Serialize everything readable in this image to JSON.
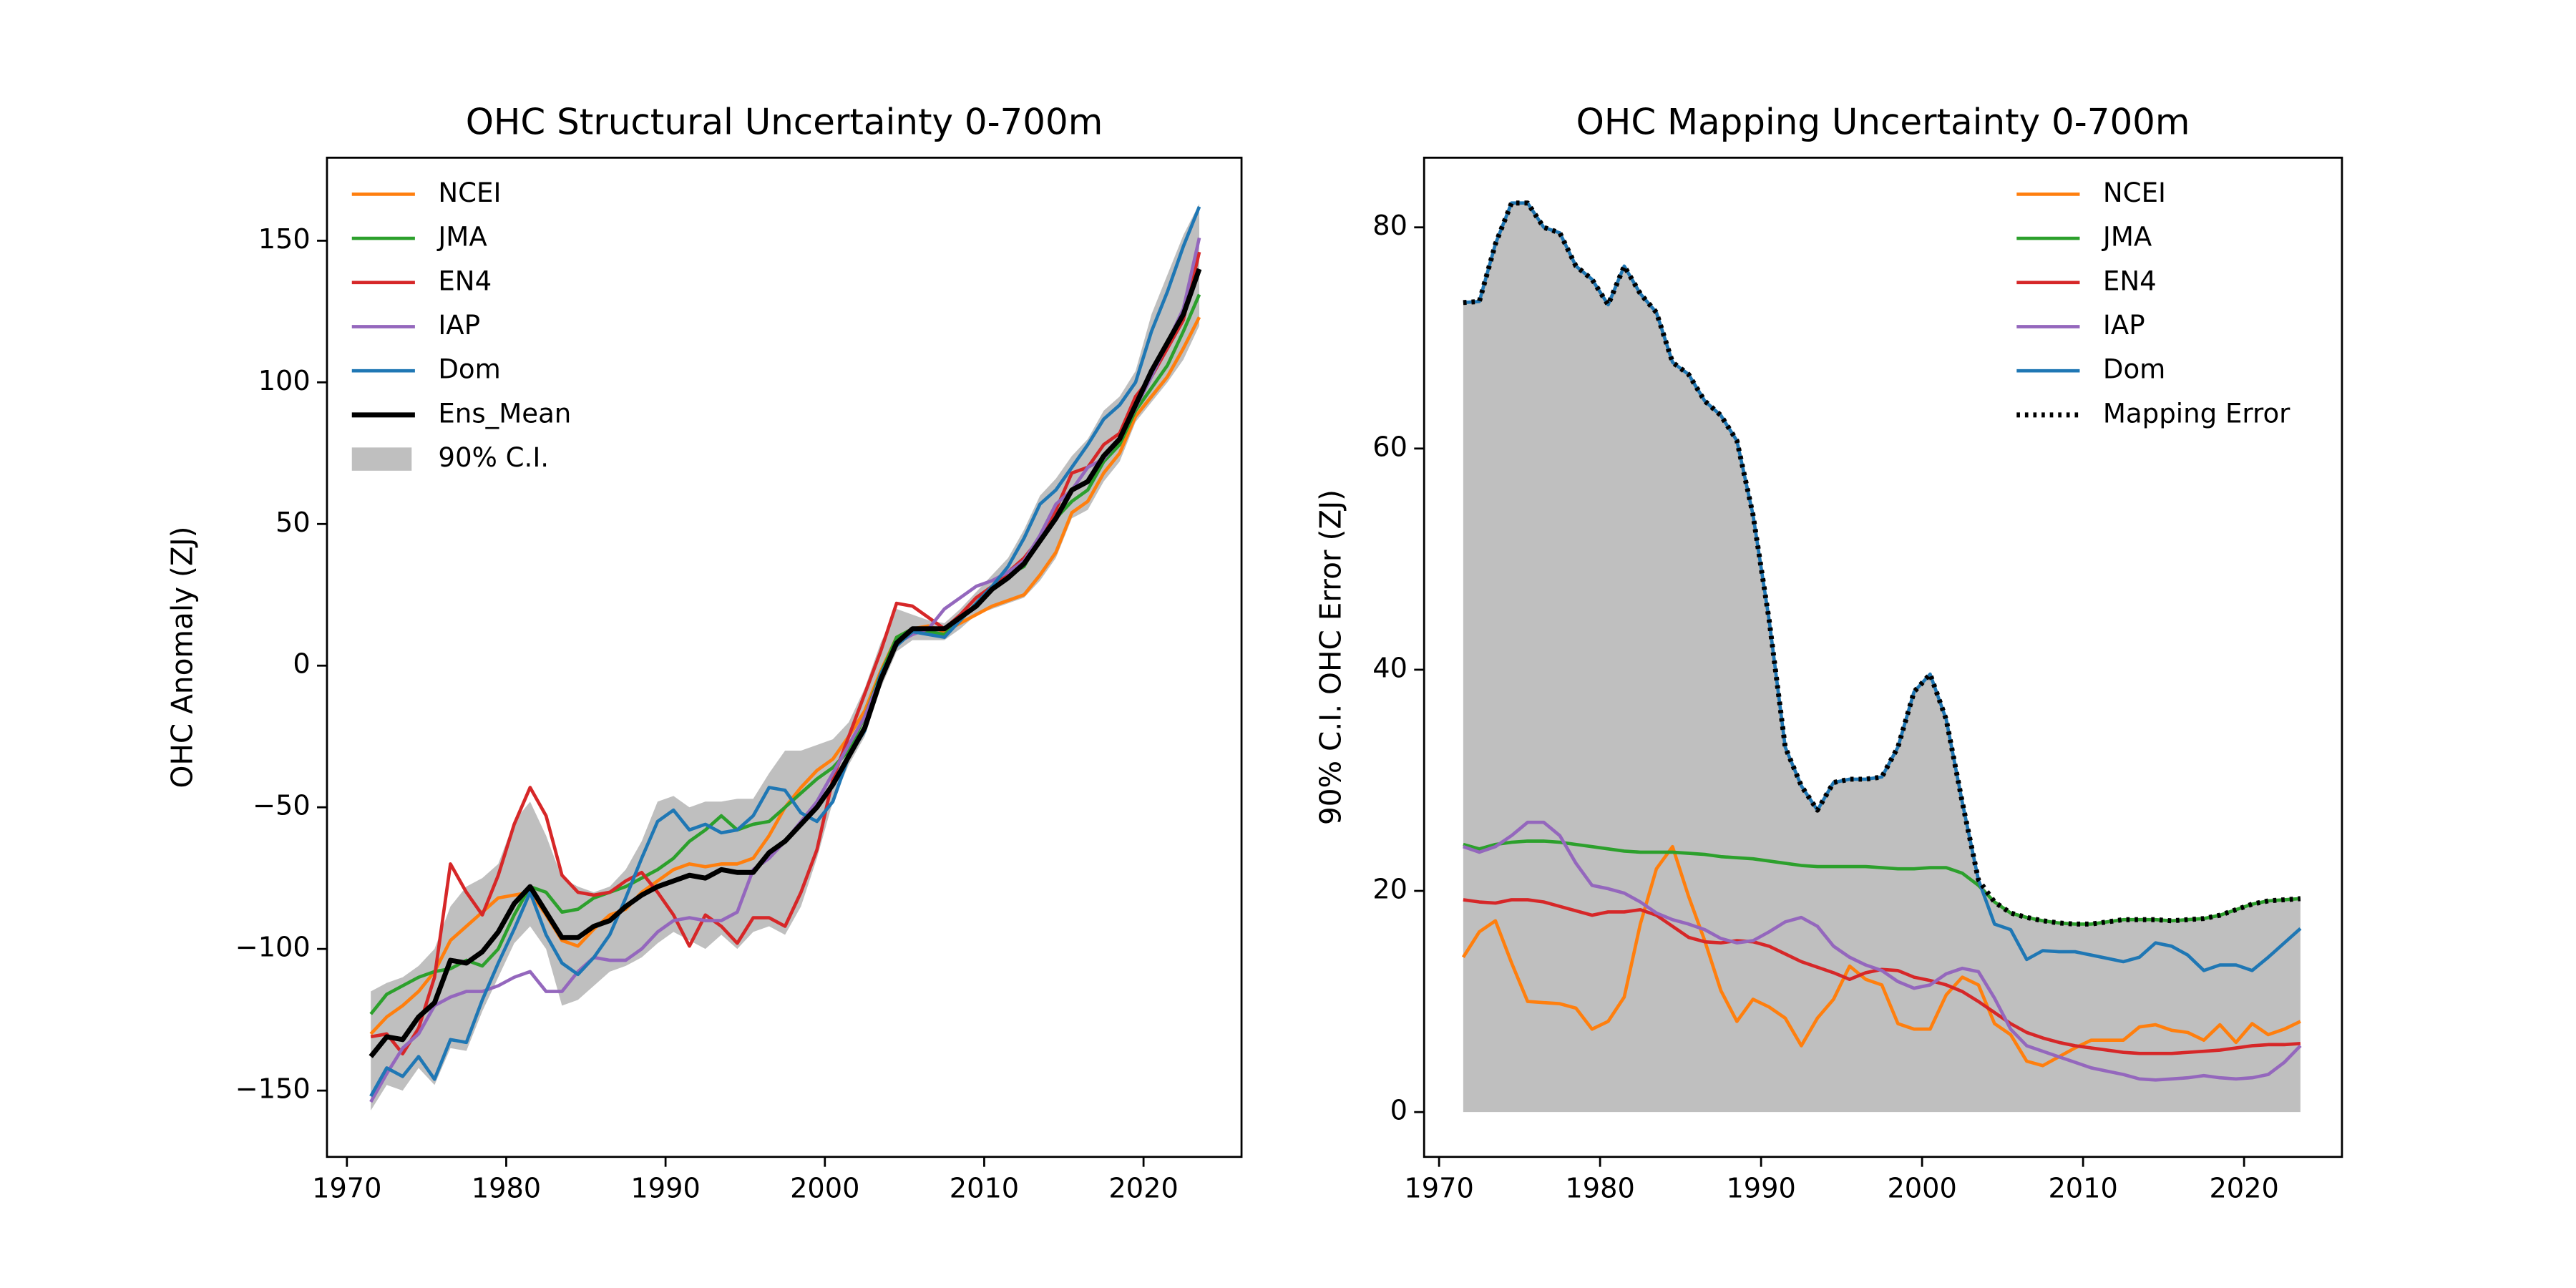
{
  "chart_data": [
    {
      "type": "line",
      "title": "OHC Structural Uncertainty 0-700m",
      "y_label": "OHC Anomaly (ZJ)",
      "legend": "upper left",
      "xlim": [
        1968.75,
        2026.15
      ],
      "ylim": [
        -173.4,
        179.3
      ],
      "xticks": [
        1970,
        1980,
        1990,
        2000,
        2010,
        2020
      ],
      "yticks": [
        {
          "value": -150,
          "label": "−150"
        },
        {
          "value": -100,
          "label": "−100"
        },
        {
          "value": -50,
          "label": "−50"
        },
        0,
        50,
        100,
        150
      ],
      "x": [
        1971.5,
        1972.5,
        1973.5,
        1974.5,
        1975.5,
        1976.5,
        1977.5,
        1978.5,
        1979.5,
        1980.5,
        1981.5,
        1982.5,
        1983.5,
        1984.5,
        1985.5,
        1986.5,
        1987.5,
        1988.5,
        1989.5,
        1990.5,
        1991.5,
        1992.5,
        1993.5,
        1994.5,
        1995.5,
        1996.5,
        1997.5,
        1998.5,
        1999.5,
        2000.5,
        2001.5,
        2002.5,
        2003.5,
        2004.5,
        2005.5,
        2006.5,
        2007.5,
        2008.5,
        2009.5,
        2010.5,
        2011.5,
        2012.5,
        2013.5,
        2014.5,
        2015.5,
        2016.5,
        2017.5,
        2018.5,
        2019.5,
        2020.5,
        2021.5,
        2022.5,
        2023.5
      ],
      "series": [
        {
          "name": "NCEI",
          "color": "#ff7f0e",
          "values": [
            -130,
            -124,
            -120,
            -115,
            -108,
            -97,
            -92,
            -87,
            -82,
            -81,
            -80,
            -88,
            -97,
            -99,
            -93,
            -88,
            -86,
            -80,
            -76,
            -72,
            -70,
            -71,
            -70,
            -70,
            -68,
            -60,
            -50,
            -43,
            -37,
            -33,
            -25,
            -16,
            -2,
            10,
            13,
            14,
            12,
            15,
            18,
            21,
            23,
            25,
            32,
            40,
            54,
            58,
            68,
            75,
            88,
            95,
            102,
            112,
            123
          ]
        },
        {
          "name": "JMA",
          "color": "#2ca02c",
          "values": [
            -123,
            -116,
            -113,
            -110,
            -108,
            -107,
            -104,
            -106,
            -100,
            -88,
            -78,
            -80,
            -87,
            -86,
            -82,
            -80,
            -78,
            -75,
            -72,
            -68,
            -62,
            -58,
            -53,
            -58,
            -56,
            -55,
            -50,
            -45,
            -40,
            -36,
            -30,
            -18,
            -3,
            10,
            13,
            12,
            11,
            16,
            22,
            28,
            32,
            35,
            45,
            52,
            58,
            62,
            72,
            78,
            90,
            98,
            106,
            118,
            131
          ]
        },
        {
          "name": "EN4",
          "color": "#d62728",
          "values": [
            -131,
            -130,
            -137,
            -128,
            -110,
            -70,
            -80,
            -88,
            -74,
            -56,
            -43,
            -53,
            -74,
            -80,
            -81,
            -80,
            -76,
            -73,
            -80,
            -88,
            -99,
            -88,
            -92,
            -98,
            -89,
            -89,
            -92,
            -80,
            -65,
            -40,
            -25,
            -10,
            5,
            22,
            21,
            17,
            13,
            18,
            24,
            28,
            33,
            38,
            45,
            55,
            68,
            70,
            78,
            82,
            95,
            102,
            112,
            122,
            146
          ]
        },
        {
          "name": "IAP",
          "color": "#9467bd",
          "values": [
            -154,
            -144,
            -135,
            -130,
            -120,
            -117,
            -115,
            -115,
            -113,
            -110,
            -108,
            -115,
            -115,
            -108,
            -103,
            -104,
            -104,
            -100,
            -94,
            -90,
            -89,
            -90,
            -90,
            -87,
            -72,
            -68,
            -62,
            -55,
            -48,
            -38,
            -28,
            -18,
            -4,
            8,
            11,
            13,
            20,
            24,
            28,
            30,
            33,
            37,
            46,
            57,
            62,
            70,
            73,
            80,
            91,
            102,
            114,
            126,
            151
          ]
        },
        {
          "name": "Dom",
          "color": "#1f77b4",
          "values": [
            -152,
            -142,
            -145,
            -138,
            -146,
            -132,
            -133,
            -118,
            -105,
            -93,
            -80,
            -95,
            -105,
            -109,
            -103,
            -95,
            -82,
            -68,
            -55,
            -51,
            -58,
            -56,
            -59,
            -58,
            -53,
            -43,
            -44,
            -52,
            -55,
            -48,
            -32,
            -23,
            -3,
            7,
            12,
            11,
            10,
            16,
            22,
            28,
            35,
            45,
            57,
            62,
            70,
            78,
            87,
            92,
            100,
            118,
            132,
            148,
            162
          ]
        },
        {
          "name": "Ens_Mean",
          "color": "#000000",
          "linewidth": 3,
          "values": [
            -138,
            -131,
            -132,
            -124,
            -119,
            -104,
            -105,
            -101,
            -94,
            -84,
            -78,
            -87,
            -96,
            -96,
            -92,
            -90,
            -85,
            -81,
            -78,
            -76,
            -74,
            -75,
            -72,
            -73,
            -73,
            -66,
            -62,
            -56,
            -50,
            -42,
            -32,
            -22,
            -5,
            8,
            13,
            13,
            13,
            17,
            21,
            27,
            31,
            36,
            44,
            52,
            62,
            65,
            74,
            80,
            92,
            104,
            114,
            124,
            140
          ]
        },
        {
          "name": "90% C.I.",
          "color": "#bfbfbf",
          "kind": "band",
          "lower": [
            -157,
            -148,
            -150,
            -142,
            -148,
            -135,
            -136,
            -122,
            -110,
            -98,
            -92,
            -100,
            -120,
            -118,
            -113,
            -108,
            -106,
            -103,
            -98,
            -94,
            -97,
            -100,
            -95,
            -100,
            -94,
            -92,
            -95,
            -85,
            -68,
            -48,
            -35,
            -25,
            -8,
            5,
            9,
            9,
            9,
            13,
            18,
            20,
            22,
            24,
            30,
            38,
            52,
            55,
            65,
            72,
            86,
            93,
            100,
            108,
            120
          ],
          "upper": [
            -115,
            -112,
            -110,
            -106,
            -100,
            -85,
            -78,
            -75,
            -70,
            -55,
            -48,
            -60,
            -75,
            -78,
            -80,
            -78,
            -72,
            -62,
            -48,
            -46,
            -50,
            -48,
            -48,
            -47,
            -47,
            -38,
            -30,
            -30,
            -28,
            -26,
            -20,
            -8,
            8,
            20,
            18,
            16,
            15,
            20,
            26,
            32,
            38,
            48,
            60,
            66,
            74,
            80,
            90,
            95,
            104,
            124,
            138,
            152,
            163
          ]
        }
      ]
    },
    {
      "type": "line",
      "title": "OHC Mapping Uncertainty 0-700m",
      "y_label": "90% C.I. OHC Error (ZJ)",
      "legend": "upper right",
      "xlim": [
        1969.07,
        2026.08
      ],
      "ylim": [
        -4.05,
        86.3
      ],
      "xticks": [
        1970,
        1980,
        1990,
        2000,
        2010,
        2020
      ],
      "yticks": [
        0,
        20,
        40,
        60,
        80
      ],
      "x": [
        1971.5,
        1972.5,
        1973.5,
        1974.5,
        1975.5,
        1976.5,
        1977.5,
        1978.5,
        1979.5,
        1980.5,
        1981.5,
        1982.5,
        1983.5,
        1984.5,
        1985.5,
        1986.5,
        1987.5,
        1988.5,
        1989.5,
        1990.5,
        1991.5,
        1992.5,
        1993.5,
        1994.5,
        1995.5,
        1996.5,
        1997.5,
        1998.5,
        1999.5,
        2000.5,
        2001.5,
        2002.5,
        2003.5,
        2004.5,
        2005.5,
        2006.5,
        2007.5,
        2008.5,
        2009.5,
        2010.5,
        2011.5,
        2012.5,
        2013.5,
        2014.5,
        2015.5,
        2016.5,
        2017.5,
        2018.5,
        2019.5,
        2020.5,
        2021.5,
        2022.5,
        2023.5
      ],
      "series": [
        {
          "name": "NCEI",
          "color": "#ff7f0e",
          "values": [
            14,
            16.3,
            17.3,
            13.5,
            10,
            9.9,
            9.8,
            9.4,
            7.5,
            8.2,
            10.4,
            17,
            22,
            24,
            19.5,
            15.5,
            11,
            8.2,
            10.2,
            9.5,
            8.5,
            6,
            8.5,
            10.2,
            13.2,
            12,
            11.5,
            8,
            7.5,
            7.5,
            10.6,
            12.2,
            11.5,
            8,
            7,
            4.6,
            4.2,
            5,
            5.8,
            6.5,
            6.5,
            6.5,
            7.7,
            7.9,
            7.4,
            7.2,
            6.5,
            7.9,
            6.3,
            8,
            7,
            7.5,
            8.2
          ]
        },
        {
          "name": "JMA",
          "color": "#2ca02c",
          "values": [
            24.2,
            23.8,
            24.2,
            24.4,
            24.5,
            24.5,
            24.4,
            24.2,
            24,
            23.8,
            23.6,
            23.5,
            23.5,
            23.5,
            23.4,
            23.3,
            23.1,
            23,
            22.9,
            22.7,
            22.5,
            22.3,
            22.2,
            22.2,
            22.2,
            22.2,
            22.1,
            22,
            22,
            22.1,
            22.1,
            21.6,
            20.5,
            19,
            18,
            17.6,
            17.3,
            17.1,
            17,
            17,
            17.2,
            17.4,
            17.4,
            17.4,
            17.3,
            17.4,
            17.5,
            17.8,
            18.3,
            18.8,
            19.1,
            19.2,
            19.3
          ]
        },
        {
          "name": "EN4",
          "color": "#d62728",
          "values": [
            19.2,
            19,
            18.9,
            19.2,
            19.2,
            19,
            18.6,
            18.2,
            17.8,
            18.1,
            18.1,
            18.3,
            17.8,
            16.8,
            15.8,
            15.4,
            15.3,
            15.5,
            15.4,
            15,
            14.3,
            13.6,
            13.1,
            12.6,
            12,
            12.6,
            12.9,
            12.8,
            12.2,
            11.9,
            11.5,
            10.9,
            10,
            9,
            8,
            7.2,
            6.7,
            6.3,
            6,
            5.8,
            5.6,
            5.4,
            5.3,
            5.3,
            5.3,
            5.4,
            5.5,
            5.6,
            5.8,
            6,
            6.1,
            6.1,
            6.2
          ]
        },
        {
          "name": "IAP",
          "color": "#9467bd",
          "values": [
            24,
            23.5,
            24,
            25,
            26.2,
            26.2,
            25,
            22.5,
            20.5,
            20.2,
            19.8,
            19,
            18,
            17.4,
            17,
            16.5,
            15.7,
            15.3,
            15.5,
            16.3,
            17.2,
            17.6,
            16.8,
            15,
            14,
            13.3,
            12.8,
            11.8,
            11.2,
            11.5,
            12.5,
            13,
            12.7,
            10.3,
            7.5,
            6,
            5.5,
            5,
            4.5,
            4,
            3.7,
            3.4,
            3,
            2.9,
            3,
            3.1,
            3.3,
            3.1,
            3,
            3.1,
            3.4,
            4.5,
            6
          ]
        },
        {
          "name": "Dom",
          "color": "#1f77b4",
          "values": [
            73.2,
            73.3,
            78.5,
            82.2,
            82.2,
            80,
            79.5,
            76.5,
            75.3,
            73,
            76.5,
            74,
            72.3,
            67.8,
            66.7,
            64.3,
            63,
            60.7,
            54,
            44.5,
            33,
            29.5,
            27.3,
            29.8,
            30.1,
            30.1,
            30.3,
            33,
            38,
            39.6,
            35.5,
            28,
            21,
            17,
            16.5,
            13.8,
            14.6,
            14.5,
            14.5,
            14.2,
            13.9,
            13.6,
            14,
            15.3,
            15,
            14.2,
            12.8,
            13.3,
            13.3,
            12.8,
            14,
            15.3,
            16.6
          ]
        },
        {
          "name": "Mapping Error",
          "color": "#000000",
          "linestyle": "dotted",
          "linewidth": 3,
          "fill_color": "#bfbfbf",
          "values": [
            73.2,
            73.3,
            78.5,
            82.2,
            82.2,
            80,
            79.5,
            76.5,
            75.3,
            73,
            76.5,
            74,
            72.3,
            67.8,
            66.7,
            64.3,
            63,
            60.7,
            54,
            44.5,
            33,
            29.5,
            27.3,
            29.8,
            30.1,
            30.1,
            30.3,
            33,
            38,
            39.6,
            35.5,
            28,
            21,
            19,
            18,
            17.6,
            17.3,
            17.1,
            17,
            17,
            17.2,
            17.4,
            17.4,
            17.4,
            17.3,
            17.4,
            17.5,
            17.8,
            18.3,
            18.8,
            19.1,
            19.2,
            19.3
          ]
        }
      ]
    }
  ]
}
